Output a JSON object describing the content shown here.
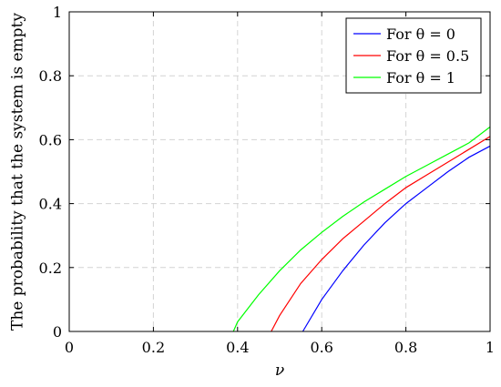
{
  "chart_data": {
    "type": "line",
    "xlabel": "ν",
    "ylabel": "The probability that the system is empty",
    "xlim": [
      0,
      1
    ],
    "ylim": [
      0,
      1
    ],
    "x_ticks": [
      0,
      0.2,
      0.4,
      0.6,
      0.8,
      1
    ],
    "y_ticks": [
      0,
      0.2,
      0.4,
      0.6,
      0.8,
      1
    ],
    "x_tick_labels": [
      "0",
      "0.2",
      "0.4",
      "0.6",
      "0.8",
      "1"
    ],
    "y_tick_labels": [
      "0",
      "0.2",
      "0.4",
      "0.6",
      "0.8",
      "1"
    ],
    "grid": true,
    "legend_position": "top-right",
    "series": [
      {
        "name": "For θ = 0",
        "color": "#0000ff",
        "x": [
          0.555,
          0.6,
          0.65,
          0.7,
          0.75,
          0.8,
          0.85,
          0.9,
          0.95,
          1.0
        ],
        "y": [
          0,
          0.1,
          0.19,
          0.27,
          0.34,
          0.4,
          0.45,
          0.5,
          0.545,
          0.58
        ]
      },
      {
        "name": "For θ = 0.5",
        "color": "#ff0000",
        "x": [
          0.48,
          0.5,
          0.55,
          0.6,
          0.65,
          0.7,
          0.75,
          0.8,
          0.85,
          0.9,
          0.95,
          1.0
        ],
        "y": [
          0,
          0.05,
          0.15,
          0.225,
          0.29,
          0.345,
          0.4,
          0.45,
          0.49,
          0.53,
          0.57,
          0.61
        ]
      },
      {
        "name": "For θ = 1",
        "color": "#00ff00",
        "x": [
          0.39,
          0.4,
          0.45,
          0.5,
          0.55,
          0.6,
          0.65,
          0.7,
          0.75,
          0.8,
          0.85,
          0.9,
          0.95,
          1.0
        ],
        "y": [
          0,
          0.03,
          0.115,
          0.19,
          0.255,
          0.31,
          0.36,
          0.405,
          0.445,
          0.485,
          0.52,
          0.555,
          0.59,
          0.64
        ]
      }
    ]
  }
}
